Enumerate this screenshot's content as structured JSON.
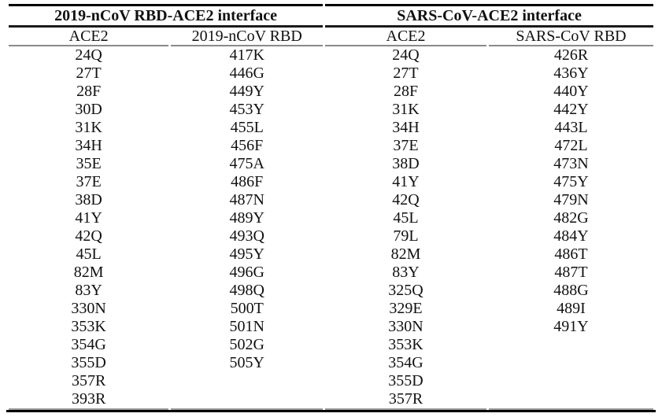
{
  "table": {
    "groups": [
      {
        "title": "2019-nCoV RBD-ACE2 interface",
        "columns": [
          "ACE2",
          "2019-nCoV RBD"
        ]
      },
      {
        "title": "SARS-CoV-ACE2 interface",
        "columns": [
          "ACE2",
          "SARS-CoV RBD"
        ]
      }
    ],
    "columns_data": {
      "ncov_ace2": [
        "24Q",
        "27T",
        "28F",
        "30D",
        "31K",
        "34H",
        "35E",
        "37E",
        "38D",
        "41Y",
        "42Q",
        "45L",
        "82M",
        "83Y",
        "330N",
        "353K",
        "354G",
        "355D",
        "357R",
        "393R"
      ],
      "ncov_rbd": [
        "417K",
        "446G",
        "449Y",
        "453Y",
        "455L",
        "456F",
        "475A",
        "486F",
        "487N",
        "489Y",
        "493Q",
        "495Y",
        "496G",
        "498Q",
        "500T",
        "501N",
        "502G",
        "505Y"
      ],
      "sars_ace2": [
        "24Q",
        "27T",
        "28F",
        "31K",
        "34H",
        "37E",
        "38D",
        "41Y",
        "42Q",
        "45L",
        "79L",
        "82M",
        "83Y",
        "325Q",
        "329E",
        "330N",
        "353K",
        "354G",
        "355D",
        "357R"
      ],
      "sars_rbd": [
        "426R",
        "436Y",
        "440Y",
        "442Y",
        "443L",
        "472L",
        "473N",
        "475Y",
        "479N",
        "482G",
        "484Y",
        "486T",
        "487T",
        "488G",
        "489I",
        "491Y"
      ]
    }
  }
}
